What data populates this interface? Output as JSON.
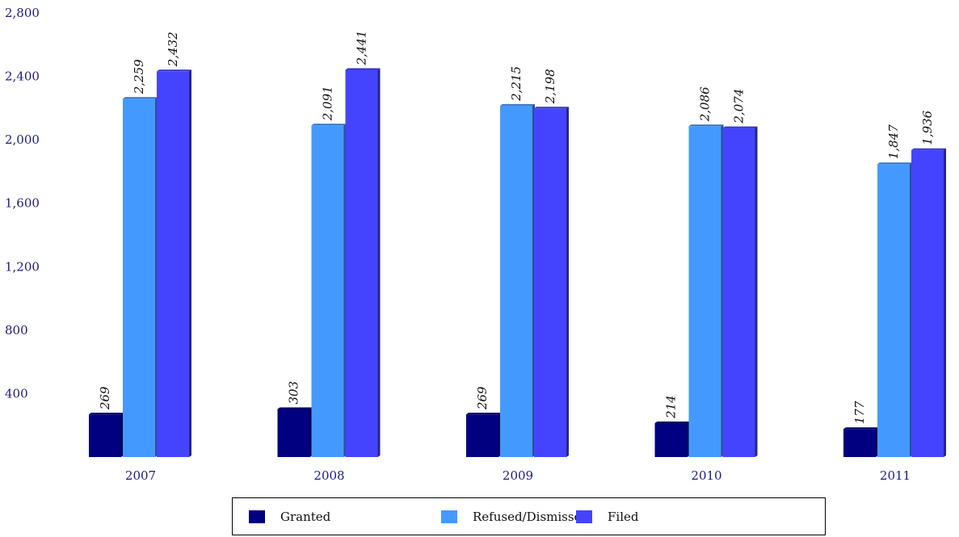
{
  "chart_data": {
    "type": "bar",
    "title": "",
    "xlabel": "",
    "ylabel": "",
    "categories": [
      "2007",
      "2008",
      "2009",
      "2010",
      "2011"
    ],
    "series": [
      {
        "name": "Granted",
        "color": "#000080",
        "values": [
          269,
          303,
          269,
          214,
          177
        ]
      },
      {
        "name": "Refused/Dismissed",
        "color": "#4499ff",
        "values": [
          2259,
          2091,
          2215,
          2086,
          1847
        ]
      },
      {
        "name": "Filed",
        "color": "#4444ff",
        "values": [
          2432,
          2441,
          2198,
          2074,
          1936
        ]
      }
    ],
    "ylim": [
      0,
      2800
    ],
    "yticks": [
      400,
      800,
      1200,
      1600,
      2000,
      2400,
      2800
    ],
    "ytick_labels": [
      "400",
      "800",
      "1,200",
      "1,600",
      "2,000",
      "2,400",
      "2,800"
    ],
    "data_labels": [
      [
        "269",
        "303",
        "269",
        "214",
        "177"
      ],
      [
        "2,259",
        "2,091",
        "2,215",
        "2,086",
        "1,847"
      ],
      [
        "2,432",
        "2,441",
        "2,198",
        "2,074",
        "1,936"
      ]
    ],
    "grid": false,
    "legend": {
      "placement": "bottom-center",
      "bordered": true
    },
    "axis_color": "#1a1a8c"
  }
}
